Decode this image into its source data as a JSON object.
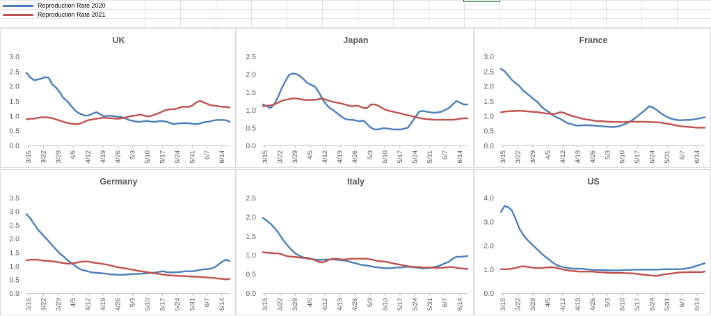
{
  "legend": [
    {
      "label": "Reproduction Rate 2020",
      "color": "#4a7ebb"
    },
    {
      "label": "Reproduction Rate 2021",
      "color": "#c0504d"
    }
  ],
  "chart_data": [
    {
      "type": "line",
      "title": "UK",
      "xticks": [
        "3/15",
        "3/22",
        "3/29",
        "4/5",
        "4/12",
        "4/19",
        "4/26",
        "5/3",
        "5/10",
        "5/17",
        "5/24",
        "5/31",
        "6/7",
        "6/14"
      ],
      "ylim": [
        0,
        3.0
      ],
      "yticks": [
        "0.0",
        "0.5",
        "1.0",
        "1.5",
        "2.0",
        "2.5",
        "3.0"
      ],
      "grid": false,
      "series": [
        {
          "name": "Reproduction Rate 2020",
          "color": "#4a7ebb",
          "values": [
            2.45,
            2.3,
            2.2,
            2.22,
            2.25,
            2.3,
            2.28,
            2.05,
            1.95,
            1.8,
            1.6,
            1.5,
            1.35,
            1.2,
            1.1,
            1.05,
            1.0,
            1.02,
            1.08,
            1.12,
            1.05,
            0.98,
            1.0,
            1.0,
            0.98,
            0.96,
            0.95,
            0.9,
            0.85,
            0.82,
            0.8,
            0.8,
            0.82,
            0.82,
            0.8,
            0.8,
            0.82,
            0.82,
            0.8,
            0.75,
            0.72,
            0.74,
            0.75,
            0.75,
            0.75,
            0.73,
            0.72,
            0.74,
            0.78,
            0.8,
            0.82,
            0.85,
            0.86,
            0.86,
            0.85,
            0.8
          ]
        },
        {
          "name": "Reproduction Rate 2021",
          "color": "#c0504d",
          "values": [
            0.88,
            0.9,
            0.9,
            0.93,
            0.95,
            0.95,
            0.94,
            0.92,
            0.88,
            0.84,
            0.8,
            0.76,
            0.74,
            0.72,
            0.72,
            0.76,
            0.82,
            0.86,
            0.88,
            0.9,
            0.92,
            0.94,
            0.92,
            0.92,
            0.9,
            0.9,
            0.92,
            0.95,
            0.98,
            1.0,
            1.02,
            1.04,
            1.0,
            0.98,
            1.0,
            1.05,
            1.1,
            1.15,
            1.2,
            1.22,
            1.22,
            1.25,
            1.3,
            1.3,
            1.3,
            1.35,
            1.45,
            1.5,
            1.45,
            1.4,
            1.35,
            1.34,
            1.32,
            1.3,
            1.3,
            1.28
          ]
        }
      ]
    },
    {
      "type": "line",
      "title": "Japan",
      "xticks": [
        "3/15",
        "3/22",
        "3/29",
        "4/5",
        "4/12",
        "4/19",
        "4/26",
        "5/3",
        "5/10",
        "5/17",
        "5/24",
        "5/31",
        "6/7",
        "6/14"
      ],
      "ylim": [
        0,
        2.5
      ],
      "yticks": [
        "0.0",
        "0.5",
        "1.0",
        "1.5",
        "2.0",
        "2.5"
      ],
      "grid": false,
      "series": [
        {
          "name": "Reproduction Rate 2020",
          "color": "#4a7ebb",
          "values": [
            1.15,
            1.1,
            1.05,
            1.15,
            1.35,
            1.6,
            1.8,
            1.98,
            2.02,
            2.0,
            1.95,
            1.85,
            1.75,
            1.7,
            1.65,
            1.5,
            1.3,
            1.15,
            1.05,
            0.98,
            0.9,
            0.82,
            0.75,
            0.72,
            0.72,
            0.7,
            0.68,
            0.7,
            0.6,
            0.5,
            0.45,
            0.45,
            0.48,
            0.48,
            0.47,
            0.45,
            0.45,
            0.45,
            0.47,
            0.5,
            0.65,
            0.8,
            0.95,
            0.97,
            0.95,
            0.93,
            0.92,
            0.93,
            0.95,
            1.0,
            1.05,
            1.15,
            1.25,
            1.2,
            1.15,
            1.15
          ]
        },
        {
          "name": "Reproduction Rate 2021",
          "color": "#c0504d",
          "values": [
            1.1,
            1.12,
            1.12,
            1.15,
            1.2,
            1.25,
            1.28,
            1.3,
            1.32,
            1.32,
            1.3,
            1.28,
            1.28,
            1.28,
            1.28,
            1.3,
            1.32,
            1.28,
            1.25,
            1.22,
            1.2,
            1.18,
            1.15,
            1.12,
            1.1,
            1.12,
            1.1,
            1.05,
            1.05,
            1.15,
            1.15,
            1.12,
            1.05,
            1.0,
            0.97,
            0.95,
            0.92,
            0.9,
            0.87,
            0.85,
            0.82,
            0.8,
            0.77,
            0.75,
            0.74,
            0.73,
            0.72,
            0.72,
            0.72,
            0.72,
            0.72,
            0.72,
            0.73,
            0.75,
            0.76,
            0.76
          ]
        }
      ]
    },
    {
      "type": "line",
      "title": "France",
      "xticks": [
        "3/15",
        "3/22",
        "3/29",
        "4/5",
        "4/12",
        "4/19",
        "4/26",
        "5/3",
        "5/10",
        "5/17",
        "5/24",
        "5/31",
        "6/7",
        "6/14"
      ],
      "ylim": [
        0,
        3.0
      ],
      "yticks": [
        "0.0",
        "0.5",
        "1.0",
        "1.5",
        "2.0",
        "2.5",
        "3.0"
      ],
      "grid": false,
      "series": [
        {
          "name": "Reproduction Rate 2020",
          "color": "#4a7ebb",
          "values": [
            2.58,
            2.5,
            2.35,
            2.2,
            2.1,
            2.0,
            1.85,
            1.75,
            1.65,
            1.55,
            1.45,
            1.3,
            1.2,
            1.12,
            1.02,
            0.95,
            0.9,
            0.82,
            0.75,
            0.72,
            0.68,
            0.67,
            0.68,
            0.68,
            0.68,
            0.67,
            0.66,
            0.65,
            0.64,
            0.63,
            0.62,
            0.63,
            0.65,
            0.7,
            0.75,
            0.82,
            0.9,
            1.0,
            1.1,
            1.2,
            1.32,
            1.28,
            1.2,
            1.1,
            1.02,
            0.95,
            0.9,
            0.87,
            0.85,
            0.85,
            0.86,
            0.86,
            0.88,
            0.9,
            0.92,
            0.95
          ]
        },
        {
          "name": "Reproduction Rate 2021",
          "color": "#c0504d",
          "values": [
            1.12,
            1.14,
            1.15,
            1.16,
            1.16,
            1.17,
            1.16,
            1.15,
            1.14,
            1.13,
            1.12,
            1.1,
            1.08,
            1.07,
            1.06,
            1.08,
            1.12,
            1.1,
            1.05,
            1.0,
            0.97,
            0.93,
            0.9,
            0.88,
            0.86,
            0.84,
            0.82,
            0.82,
            0.81,
            0.8,
            0.8,
            0.79,
            0.79,
            0.79,
            0.8,
            0.8,
            0.8,
            0.8,
            0.8,
            0.8,
            0.79,
            0.79,
            0.78,
            0.77,
            0.75,
            0.73,
            0.71,
            0.68,
            0.66,
            0.64,
            0.63,
            0.62,
            0.61,
            0.6,
            0.6,
            0.6
          ]
        }
      ]
    },
    {
      "type": "line",
      "title": "Germany",
      "xticks": [
        "3/15",
        "3/22",
        "3/29",
        "4/5",
        "4/12",
        "4/19",
        "4/26",
        "5/3",
        "5/10",
        "5/17",
        "5/24",
        "5/31",
        "6/7",
        "6/14"
      ],
      "ylim": [
        0,
        3.5
      ],
      "yticks": [
        "0.0",
        "0.5",
        "1.0",
        "1.5",
        "2.0",
        "2.5",
        "3.0",
        "3.5"
      ],
      "grid": false,
      "series": [
        {
          "name": "Reproduction Rate 2020",
          "color": "#4a7ebb",
          "values": [
            2.9,
            2.75,
            2.55,
            2.35,
            2.2,
            2.05,
            1.9,
            1.75,
            1.6,
            1.45,
            1.35,
            1.22,
            1.12,
            1.02,
            0.92,
            0.85,
            0.82,
            0.78,
            0.75,
            0.74,
            0.73,
            0.72,
            0.7,
            0.68,
            0.68,
            0.67,
            0.67,
            0.68,
            0.69,
            0.7,
            0.7,
            0.71,
            0.72,
            0.73,
            0.74,
            0.75,
            0.78,
            0.8,
            0.77,
            0.76,
            0.76,
            0.77,
            0.78,
            0.8,
            0.8,
            0.8,
            0.82,
            0.85,
            0.87,
            0.88,
            0.9,
            0.95,
            1.05,
            1.15,
            1.22,
            1.18
          ]
        },
        {
          "name": "Reproduction Rate 2021",
          "color": "#c0504d",
          "values": [
            1.2,
            1.22,
            1.23,
            1.22,
            1.2,
            1.18,
            1.18,
            1.16,
            1.15,
            1.12,
            1.1,
            1.08,
            1.08,
            1.1,
            1.13,
            1.15,
            1.16,
            1.15,
            1.12,
            1.1,
            1.08,
            1.06,
            1.04,
            1.0,
            0.97,
            0.94,
            0.92,
            0.9,
            0.87,
            0.85,
            0.82,
            0.8,
            0.78,
            0.76,
            0.74,
            0.72,
            0.7,
            0.68,
            0.66,
            0.65,
            0.64,
            0.63,
            0.62,
            0.62,
            0.61,
            0.6,
            0.6,
            0.59,
            0.58,
            0.57,
            0.56,
            0.55,
            0.53,
            0.52,
            0.5,
            0.52
          ]
        }
      ]
    },
    {
      "type": "line",
      "title": "Italy",
      "xticks": [
        "3/15",
        "3/22",
        "3/29",
        "4/5",
        "4/12",
        "4/19",
        "4/26",
        "5/3",
        "5/10",
        "5/17",
        "5/24",
        "5/31",
        "6/7",
        "6/14"
      ],
      "ylim": [
        0,
        2.5
      ],
      "yticks": [
        "0.0",
        "0.5",
        "1.0",
        "1.5",
        "2.0",
        "2.5"
      ],
      "grid": false,
      "series": [
        {
          "name": "Reproduction Rate 2020",
          "color": "#4a7ebb",
          "values": [
            1.97,
            1.9,
            1.82,
            1.72,
            1.6,
            1.45,
            1.32,
            1.2,
            1.1,
            1.02,
            0.97,
            0.93,
            0.9,
            0.89,
            0.88,
            0.87,
            0.87,
            0.88,
            0.88,
            0.88,
            0.87,
            0.86,
            0.85,
            0.83,
            0.8,
            0.78,
            0.75,
            0.73,
            0.72,
            0.7,
            0.68,
            0.67,
            0.66,
            0.65,
            0.65,
            0.66,
            0.67,
            0.67,
            0.68,
            0.69,
            0.68,
            0.67,
            0.66,
            0.65,
            0.65,
            0.66,
            0.68,
            0.7,
            0.74,
            0.78,
            0.82,
            0.9,
            0.95,
            0.95,
            0.96,
            0.97
          ]
        },
        {
          "name": "Reproduction Rate 2021",
          "color": "#c0504d",
          "values": [
            1.07,
            1.06,
            1.05,
            1.04,
            1.04,
            1.02,
            0.98,
            0.96,
            0.95,
            0.94,
            0.93,
            0.92,
            0.92,
            0.9,
            0.86,
            0.82,
            0.8,
            0.84,
            0.88,
            0.9,
            0.9,
            0.88,
            0.88,
            0.89,
            0.9,
            0.9,
            0.9,
            0.9,
            0.9,
            0.88,
            0.86,
            0.84,
            0.83,
            0.82,
            0.8,
            0.78,
            0.76,
            0.74,
            0.72,
            0.7,
            0.69,
            0.68,
            0.68,
            0.67,
            0.67,
            0.67,
            0.66,
            0.66,
            0.66,
            0.67,
            0.68,
            0.68,
            0.66,
            0.65,
            0.64,
            0.63
          ]
        }
      ]
    },
    {
      "type": "line",
      "title": "US",
      "xticks": [
        "3/15",
        "3/22",
        "3/29",
        "4/5",
        "4/12",
        "4/19",
        "4/26",
        "5/3",
        "5/10",
        "5/17",
        "5/24",
        "5/31",
        "6/7",
        "6/14"
      ],
      "ylim": [
        0,
        4.0
      ],
      "yticks": [
        "0.0",
        "1.0",
        "2.0",
        "3.0",
        "4.0"
      ],
      "grid": false,
      "series": [
        {
          "name": "Reproduction Rate 2020",
          "color": "#4a7ebb",
          "values": [
            3.4,
            3.65,
            3.6,
            3.45,
            3.1,
            2.7,
            2.45,
            2.25,
            2.1,
            1.95,
            1.8,
            1.65,
            1.52,
            1.4,
            1.28,
            1.18,
            1.12,
            1.08,
            1.05,
            1.03,
            1.02,
            1.02,
            1.02,
            1.0,
            0.98,
            0.97,
            0.97,
            0.97,
            0.96,
            0.95,
            0.95,
            0.95,
            0.95,
            0.96,
            0.97,
            0.97,
            0.98,
            0.98,
            0.98,
            0.98,
            0.98,
            0.98,
            0.98,
            0.99,
            1.0,
            1.0,
            1.0,
            1.0,
            1.0,
            1.01,
            1.03,
            1.06,
            1.1,
            1.15,
            1.2,
            1.25
          ]
        },
        {
          "name": "Reproduction Rate 2021",
          "color": "#c0504d",
          "values": [
            1.0,
            1.0,
            1.0,
            1.02,
            1.05,
            1.1,
            1.12,
            1.1,
            1.08,
            1.05,
            1.05,
            1.05,
            1.07,
            1.08,
            1.08,
            1.06,
            1.02,
            0.98,
            0.95,
            0.93,
            0.92,
            0.9,
            0.9,
            0.9,
            0.9,
            0.9,
            0.88,
            0.87,
            0.86,
            0.85,
            0.84,
            0.84,
            0.84,
            0.84,
            0.83,
            0.83,
            0.82,
            0.8,
            0.78,
            0.76,
            0.75,
            0.73,
            0.72,
            0.75,
            0.78,
            0.8,
            0.82,
            0.84,
            0.86,
            0.87,
            0.87,
            0.88,
            0.88,
            0.88,
            0.88,
            0.9
          ]
        }
      ]
    }
  ]
}
